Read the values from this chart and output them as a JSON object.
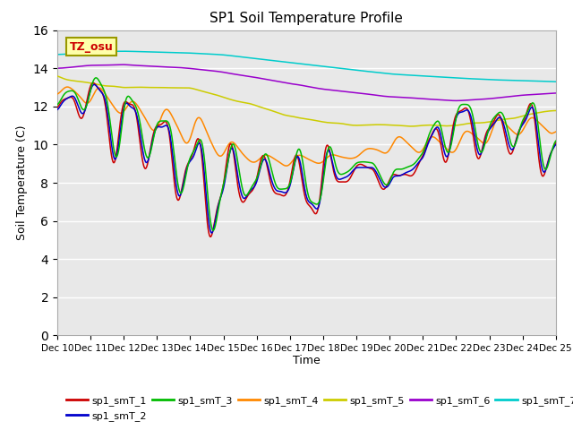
{
  "title": "SP1 Soil Temperature Profile",
  "xlabel": "Time",
  "ylabel": "Soil Temperature (C)",
  "ylim": [
    0,
    16
  ],
  "yticks": [
    0,
    2,
    4,
    6,
    8,
    10,
    12,
    14,
    16
  ],
  "x_labels": [
    "Dec 10",
    "Dec 11",
    "Dec 12",
    "Dec 13",
    "Dec 14",
    "Dec 15",
    "Dec 16",
    "Dec 17",
    "Dec 18",
    "Dec 19",
    "Dec 20",
    "Dec 21",
    "Dec 22",
    "Dec 23",
    "Dec 24",
    "Dec 25"
  ],
  "series_colors": {
    "sp1_smT_1": "#cc0000",
    "sp1_smT_2": "#0000cc",
    "sp1_smT_3": "#00bb00",
    "sp1_smT_4": "#ff8800",
    "sp1_smT_5": "#cccc00",
    "sp1_smT_6": "#9900cc",
    "sp1_smT_7": "#00cccc"
  },
  "annotation_text": "TZ_osu",
  "annotation_box_color": "#ffffaa",
  "annotation_box_edge": "#999900",
  "annotation_text_color": "#cc0000",
  "background_color": "#e8e8e8",
  "n_points": 1500
}
